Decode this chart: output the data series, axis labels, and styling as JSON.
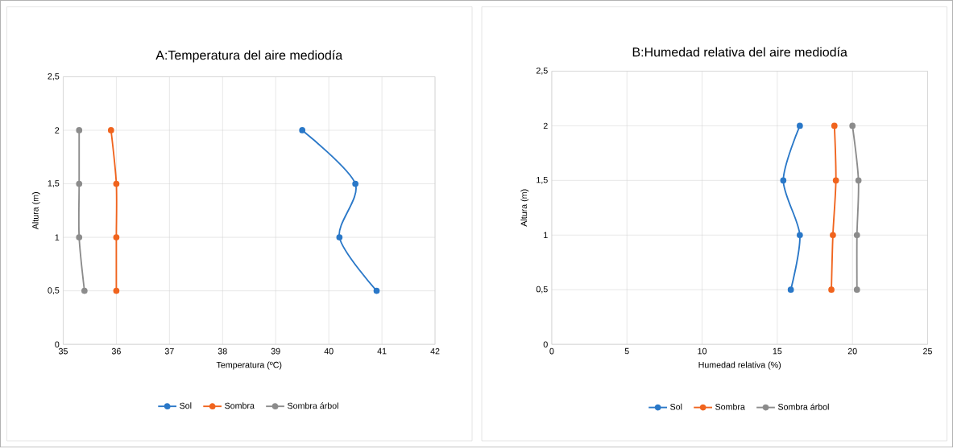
{
  "chart_data": [
    {
      "type": "line",
      "title": "A:Temperatura del aire mediodía",
      "xlabel": "Temperatura (ºC)",
      "ylabel": "Altura (m)",
      "xlim": [
        35,
        42
      ],
      "xticks": [
        35,
        36,
        37,
        38,
        39,
        40,
        41,
        42
      ],
      "ylim": [
        0,
        2.5
      ],
      "yticks": [
        0,
        {
          "value": 0.5,
          "label": "0,5"
        },
        1,
        {
          "value": 1.5,
          "label": "1,5"
        },
        2,
        {
          "value": 2.5,
          "label": "2,5"
        }
      ],
      "grid": true,
      "legend": "bottom",
      "marker": "circle",
      "line_style": "solid",
      "series": [
        {
          "name": "Sol",
          "color": "#2a78c8",
          "x": [
            40.9,
            40.2,
            40.5,
            39.5
          ],
          "values": [
            0.5,
            1,
            1.5,
            2
          ]
        },
        {
          "name": "Sombra",
          "color": "#f0641e",
          "x": [
            36.0,
            36.0,
            36.0,
            35.9
          ],
          "values": [
            0.5,
            1,
            1.5,
            2
          ]
        },
        {
          "name": "Sombra árbol",
          "color": "#8c8c8c",
          "x": [
            35.4,
            35.3,
            35.3,
            35.3
          ],
          "values": [
            0.5,
            1,
            1.5,
            2
          ]
        }
      ]
    },
    {
      "type": "line",
      "title": "B:Humedad relativa del aire mediodía",
      "xlabel": "Humedad relativa (%)",
      "ylabel": "Altura (m)",
      "xlim": [
        0,
        25
      ],
      "xticks": [
        0,
        5,
        10,
        15,
        20,
        25
      ],
      "ylim": [
        0,
        2.5
      ],
      "yticks": [
        0,
        {
          "value": 0.5,
          "label": "0,5"
        },
        1,
        {
          "value": 1.5,
          "label": "1,5"
        },
        2,
        {
          "value": 2.5,
          "label": "2,5"
        }
      ],
      "grid": true,
      "legend": "bottom",
      "marker": "circle",
      "line_style": "solid",
      "series": [
        {
          "name": "Sol",
          "color": "#2a78c8",
          "x": [
            15.9,
            16.5,
            15.4,
            16.5
          ],
          "values": [
            0.5,
            1,
            1.5,
            2
          ]
        },
        {
          "name": "Sombra",
          "color": "#f0641e",
          "x": [
            18.6,
            18.7,
            18.9,
            18.8
          ],
          "values": [
            0.5,
            1,
            1.5,
            2
          ]
        },
        {
          "name": "Sombra árbol",
          "color": "#8c8c8c",
          "x": [
            20.3,
            20.3,
            20.4,
            20.0
          ],
          "values": [
            0.5,
            1,
            1.5,
            2
          ]
        }
      ]
    }
  ]
}
